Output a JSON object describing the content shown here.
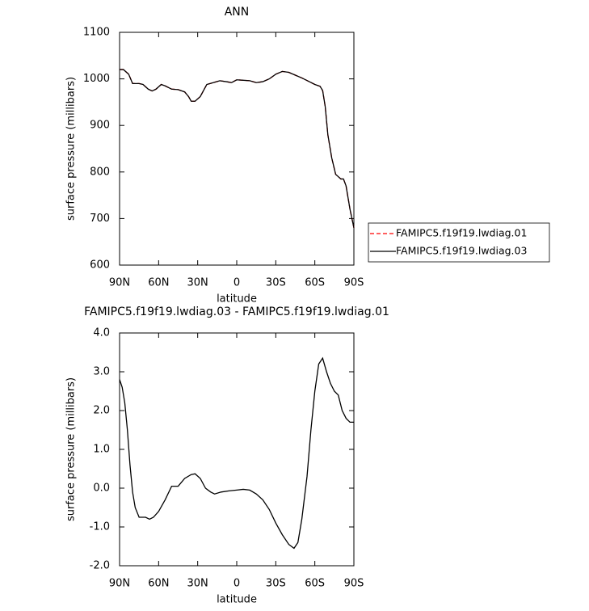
{
  "chart_data": [
    {
      "type": "line",
      "title": "ANN",
      "xlabel": "latitude",
      "ylabel": "surface pressure (millibars)",
      "xlim": [
        90,
        -90
      ],
      "xticks": [
        {
          "value": 90,
          "label": "90N"
        },
        {
          "value": 60,
          "label": "60N"
        },
        {
          "value": 30,
          "label": "30N"
        },
        0,
        {
          "value": -30,
          "label": "30S"
        },
        {
          "value": -60,
          "label": "60S"
        },
        {
          "value": -90,
          "label": "90S"
        }
      ],
      "ylim": [
        600,
        1100
      ],
      "yticks": [
        600,
        700,
        800,
        900,
        1000,
        1100
      ],
      "legend_position": "right",
      "x": [
        90,
        87,
        83,
        80,
        75,
        72,
        68,
        65,
        62,
        58,
        55,
        50,
        45,
        40,
        37,
        35,
        32,
        28,
        23,
        18,
        13,
        8,
        4,
        0,
        -5,
        -10,
        -15,
        -20,
        -25,
        -30,
        -35,
        -40,
        -45,
        -50,
        -55,
        -60,
        -64,
        -66,
        -68,
        -70,
        -73,
        -76,
        -80,
        -82,
        -84,
        -87,
        -90
      ],
      "series": [
        {
          "name": "FAMIPC5.f19f19.lwdiag.01",
          "color": "#ff0000",
          "line_style": "dashed",
          "values": [
            1020,
            1020,
            1010,
            990,
            990,
            988,
            978,
            974,
            978,
            988,
            985,
            978,
            977,
            972,
            962,
            952,
            952,
            962,
            988,
            992,
            996,
            994,
            992,
            998,
            997,
            996,
            992,
            994,
            1000,
            1010,
            1016,
            1014,
            1008,
            1002,
            995,
            988,
            984,
            975,
            940,
            880,
            830,
            795,
            785,
            785,
            770,
            720,
            680
          ]
        },
        {
          "name": "FAMIPC5.f19f19.lwdiag.03",
          "color": "#000000",
          "line_style": "solid",
          "values": [
            1020,
            1020,
            1010,
            990,
            990,
            988,
            978,
            974,
            978,
            988,
            985,
            978,
            977,
            972,
            962,
            952,
            952,
            962,
            988,
            992,
            996,
            994,
            992,
            998,
            997,
            996,
            992,
            994,
            1000,
            1010,
            1016,
            1014,
            1008,
            1002,
            995,
            988,
            984,
            975,
            940,
            880,
            830,
            795,
            785,
            785,
            770,
            720,
            680
          ]
        }
      ]
    },
    {
      "type": "line",
      "title": "FAMIPC5.f19f19.lwdiag.03 - FAMIPC5.f19f19.lwdiag.01",
      "xlabel": "latitude",
      "ylabel": "surface pressure (millibars)",
      "xlim": [
        90,
        -90
      ],
      "xticks": [
        {
          "value": 90,
          "label": "90N"
        },
        {
          "value": 60,
          "label": "60N"
        },
        {
          "value": 30,
          "label": "30N"
        },
        0,
        {
          "value": -30,
          "label": "30S"
        },
        {
          "value": -60,
          "label": "60S"
        },
        {
          "value": -90,
          "label": "90S"
        }
      ],
      "ylim": [
        -2,
        4
      ],
      "yticks": [
        {
          "value": -2,
          "label": "-2.0"
        },
        {
          "value": -1,
          "label": "-1.0"
        },
        {
          "value": 0,
          "label": "0.0"
        },
        {
          "value": 1,
          "label": "1.0"
        },
        {
          "value": 2,
          "label": "2.0"
        },
        {
          "value": 3,
          "label": "3.0"
        },
        {
          "value": 4,
          "label": "4.0"
        }
      ],
      "x": [
        90,
        88,
        86,
        84,
        82,
        80,
        78,
        75,
        72,
        70,
        67,
        64,
        60,
        55,
        50,
        45,
        40,
        35,
        32,
        28,
        24,
        20,
        17,
        12,
        6,
        0,
        -5,
        -10,
        -15,
        -20,
        -25,
        -30,
        -35,
        -40,
        -44,
        -47,
        -50,
        -54,
        -57,
        -60,
        -63,
        -66,
        -69,
        -72,
        -75,
        -78,
        -81,
        -84,
        -87,
        -90
      ],
      "series": [
        {
          "color": "#000000",
          "line_style": "solid",
          "values": [
            2.8,
            2.6,
            2.2,
            1.5,
            0.6,
            -0.1,
            -0.5,
            -0.75,
            -0.75,
            -0.75,
            -0.8,
            -0.75,
            -0.6,
            -0.3,
            0.05,
            0.05,
            0.25,
            0.35,
            0.37,
            0.25,
            0.0,
            -0.1,
            -0.15,
            -0.1,
            -0.07,
            -0.05,
            -0.03,
            -0.05,
            -0.15,
            -0.3,
            -0.55,
            -0.9,
            -1.2,
            -1.45,
            -1.55,
            -1.4,
            -0.8,
            0.3,
            1.5,
            2.5,
            3.2,
            3.35,
            3.0,
            2.7,
            2.5,
            2.4,
            2.0,
            1.8,
            1.7,
            1.7
          ]
        }
      ]
    }
  ]
}
